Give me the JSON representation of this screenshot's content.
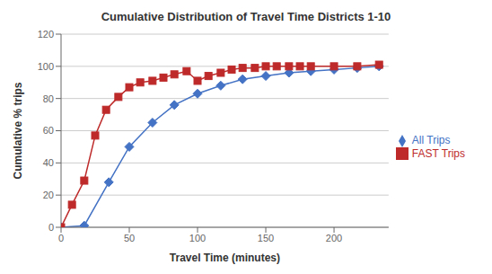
{
  "chart_data": {
    "type": "line",
    "title": "Cumulative Distribution of Travel Time Districts 1-10",
    "xlabel": "Travel Time (minutes)",
    "ylabel": "Cumulative % trips",
    "series": [
      {
        "name": "All Trips",
        "color": "#4472C4",
        "marker": "diamond",
        "x": [
          0,
          17,
          35,
          50,
          67,
          83,
          100,
          117,
          133,
          150,
          167,
          183,
          200,
          217,
          233
        ],
        "values": [
          0,
          1,
          28,
          50,
          65,
          76,
          83,
          88,
          92,
          94,
          96,
          97,
          98,
          99,
          100
        ]
      },
      {
        "name": "FAST Trips",
        "color": "#BE2A2A",
        "marker": "square",
        "x": [
          0,
          8,
          17,
          25,
          33,
          42,
          50,
          58,
          67,
          75,
          83,
          92,
          100,
          108,
          117,
          125,
          133,
          142,
          150,
          158,
          167,
          175,
          183,
          200,
          217,
          233
        ],
        "values": [
          0,
          14,
          29,
          57,
          73,
          81,
          87,
          90,
          91,
          93,
          95,
          97,
          91,
          94,
          96,
          98,
          99,
          99,
          100,
          100,
          100,
          100,
          100,
          100,
          100,
          101
        ]
      }
    ],
    "xlim": [
      0,
      240
    ],
    "ylim": [
      0,
      120
    ],
    "xticks": [
      0,
      50,
      100,
      150,
      200
    ],
    "yticks": [
      0,
      20,
      40,
      60,
      80,
      100,
      120
    ],
    "grid": "y",
    "legend": "right"
  }
}
